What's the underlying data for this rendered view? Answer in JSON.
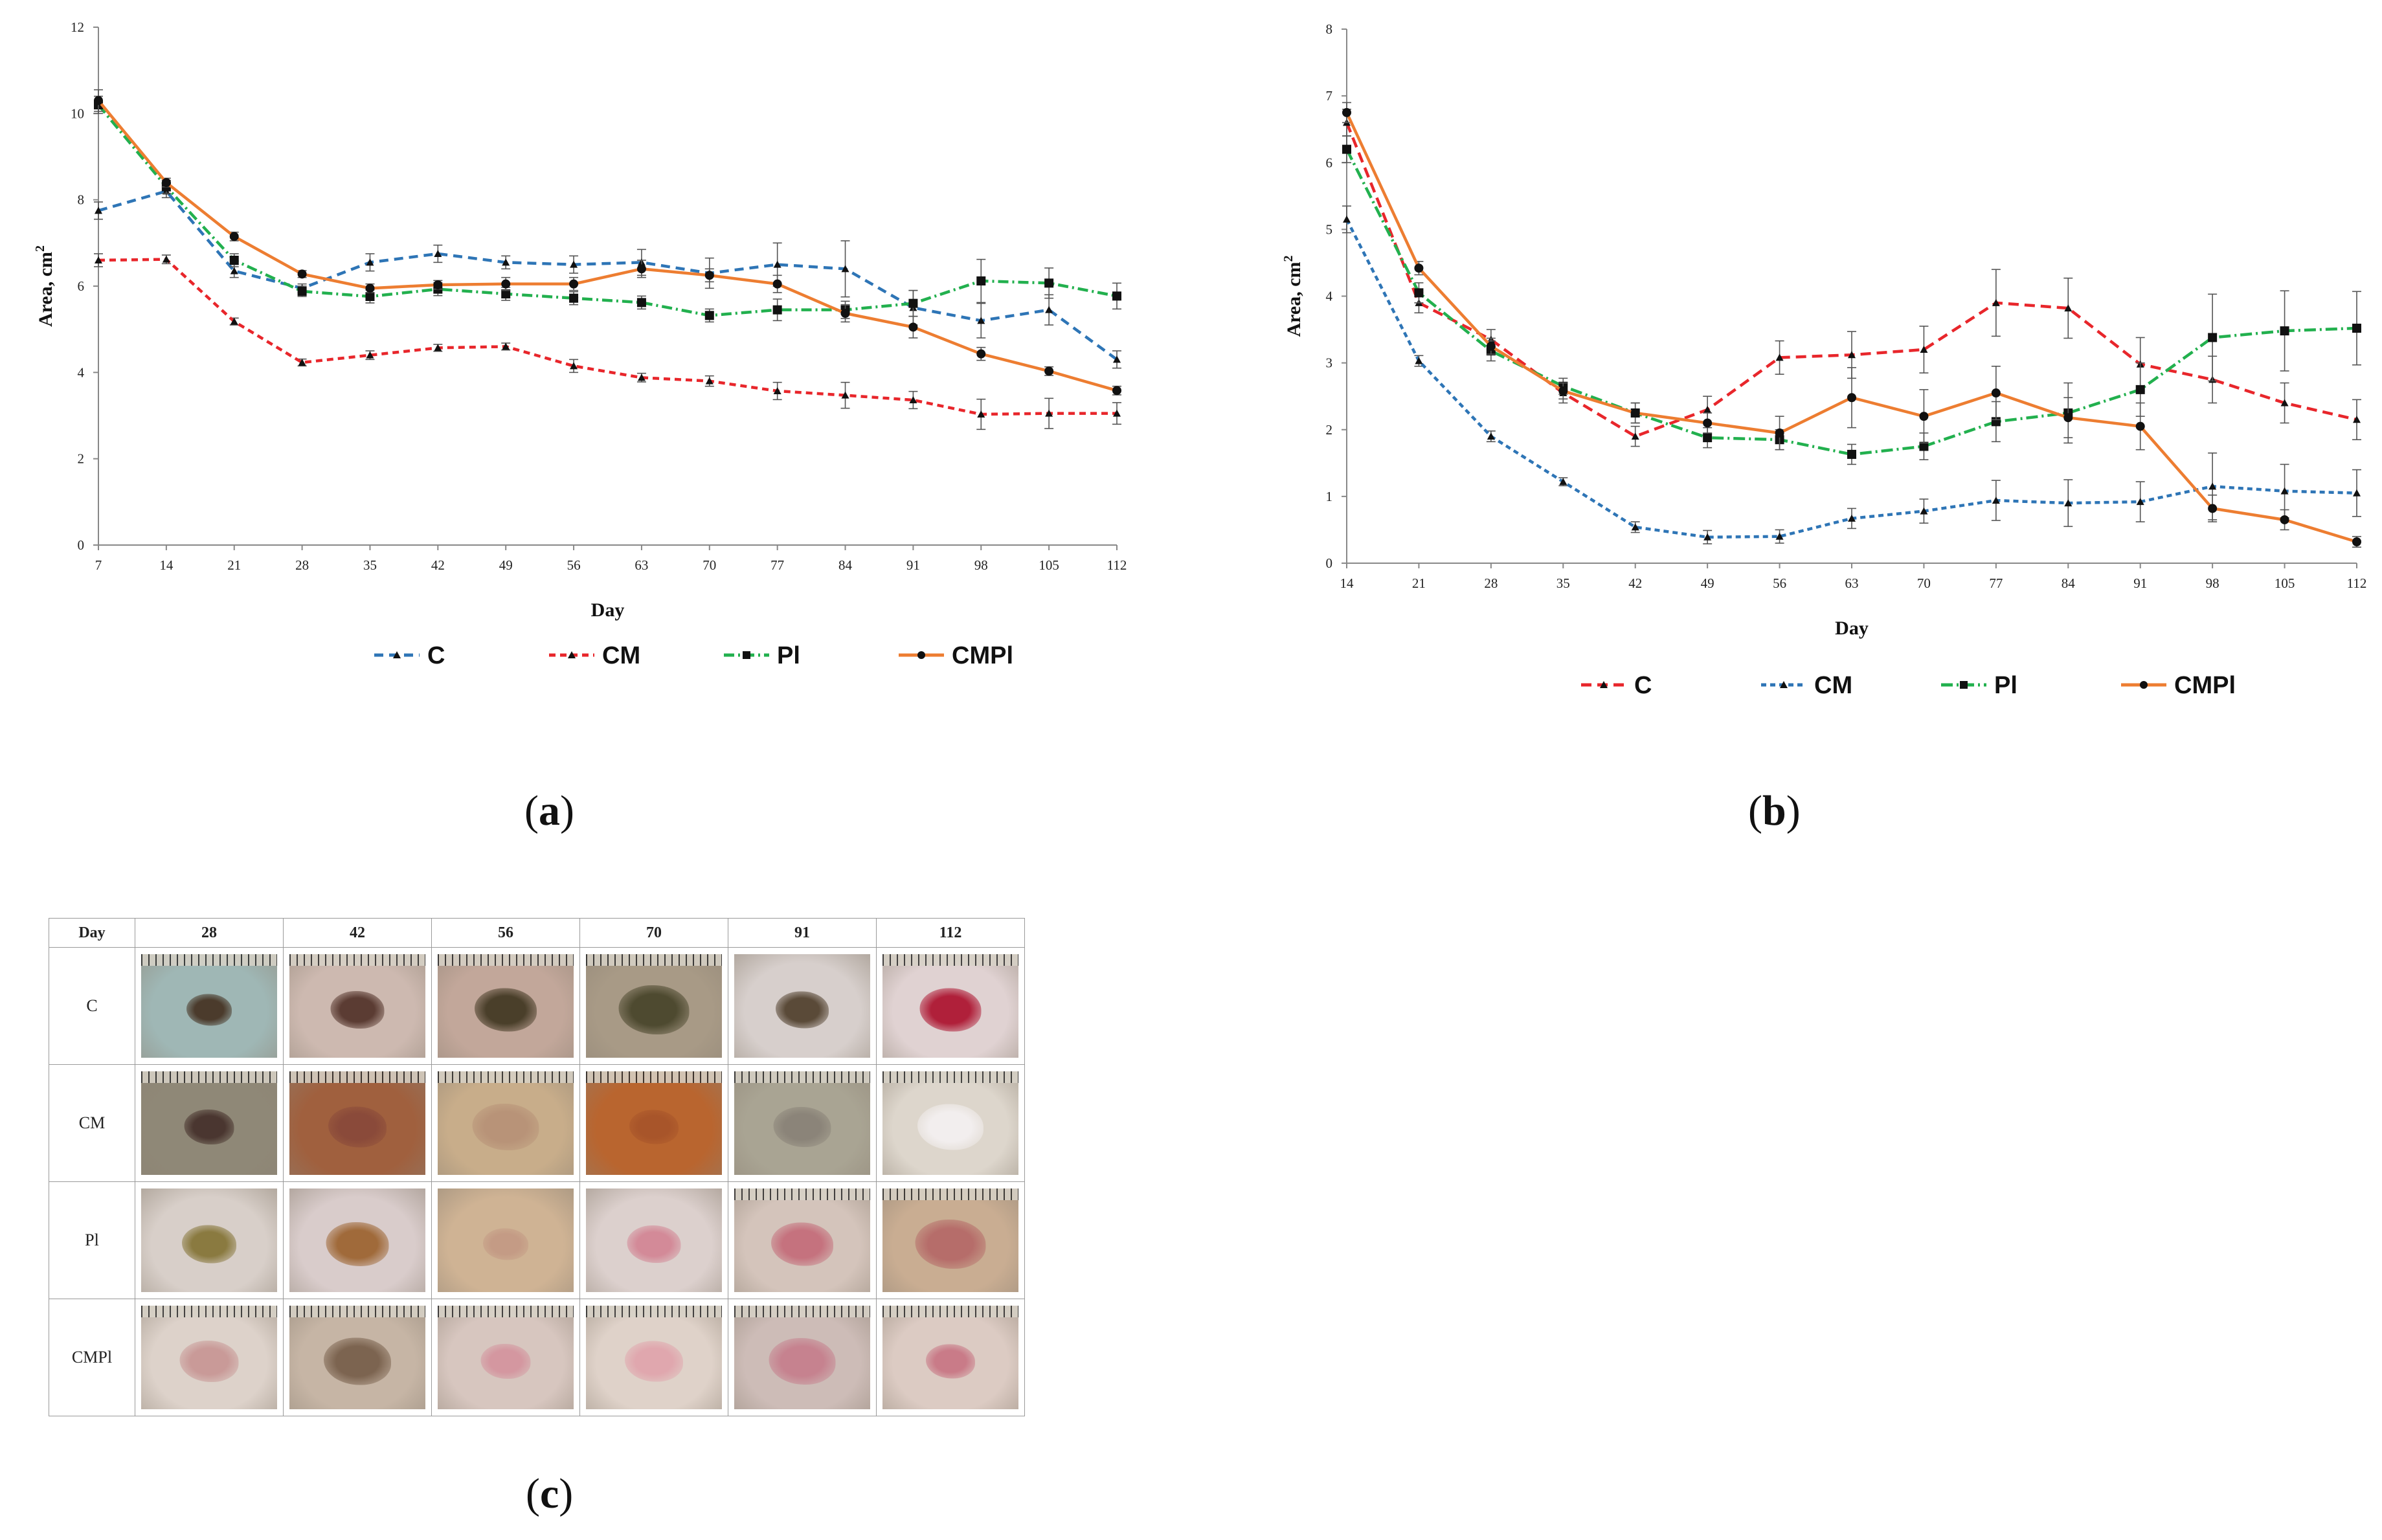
{
  "chart_data": [
    {
      "type": "line",
      "panel": "a",
      "xlabel": "Day",
      "ylabel": "Area, cm",
      "ylabel_sup": "2",
      "x": [
        7,
        14,
        21,
        28,
        35,
        42,
        49,
        56,
        63,
        70,
        77,
        84,
        91,
        98,
        105,
        112
      ],
      "ylim": [
        0,
        12
      ],
      "yticks": [
        0,
        2,
        4,
        6,
        8,
        10,
        12
      ],
      "grid": false,
      "legend": "bottom",
      "series": [
        {
          "name": "C",
          "color": "#2e75b6",
          "dash": "14 9",
          "marker": "tri",
          "values": [
            7.75,
            8.2,
            6.35,
            5.95,
            6.55,
            6.75,
            6.55,
            6.5,
            6.55,
            6.3,
            6.5,
            6.4,
            5.5,
            5.2,
            5.45,
            4.3
          ],
          "errors": [
            0.2,
            0.15,
            0.15,
            0.1,
            0.2,
            0.2,
            0.15,
            0.2,
            0.3,
            0.35,
            0.5,
            0.65,
            0.4,
            0.4,
            0.35,
            0.2
          ]
        },
        {
          "name": "CM",
          "color": "#e8262b",
          "dash": "10 7",
          "marker": "tri",
          "values": [
            6.6,
            6.62,
            5.18,
            4.23,
            4.4,
            4.57,
            4.6,
            4.15,
            3.88,
            3.8,
            3.57,
            3.47,
            3.36,
            3.03,
            3.05,
            3.05
          ],
          "errors": [
            0.15,
            0.1,
            0.08,
            0.08,
            0.1,
            0.08,
            0.08,
            0.15,
            0.1,
            0.12,
            0.2,
            0.3,
            0.2,
            0.35,
            0.35,
            0.25
          ]
        },
        {
          "name": "Pl",
          "color": "#22b04e",
          "dash": "16 6 3 6",
          "marker": "square",
          "values": [
            10.2,
            8.3,
            6.6,
            5.88,
            5.76,
            5.93,
            5.82,
            5.72,
            5.62,
            5.32,
            5.45,
            5.45,
            5.6,
            6.12,
            6.07,
            5.77
          ],
          "errors": [
            0.2,
            0.15,
            0.15,
            0.12,
            0.15,
            0.15,
            0.15,
            0.15,
            0.15,
            0.15,
            0.25,
            0.2,
            0.3,
            0.5,
            0.35,
            0.3
          ]
        },
        {
          "name": "CMPl",
          "color": "#ed7d31",
          "dash": "",
          "marker": "dot",
          "values": [
            10.3,
            8.4,
            7.15,
            6.28,
            5.95,
            6.03,
            6.05,
            6.05,
            6.4,
            6.25,
            6.05,
            5.37,
            5.05,
            4.43,
            4.03,
            3.58
          ],
          "errors": [
            0.25,
            0.1,
            0.1,
            0.08,
            0.1,
            0.1,
            0.15,
            0.15,
            0.2,
            0.15,
            0.2,
            0.2,
            0.25,
            0.15,
            0.1,
            0.1
          ]
        }
      ]
    },
    {
      "type": "line",
      "panel": "b",
      "xlabel": "Day",
      "ylabel": "Area, cm",
      "ylabel_sup": "2",
      "x": [
        14,
        21,
        28,
        35,
        42,
        49,
        56,
        63,
        70,
        77,
        84,
        91,
        98,
        105,
        112
      ],
      "ylim": [
        0,
        8
      ],
      "yticks": [
        0,
        1,
        2,
        3,
        4,
        5,
        6,
        7,
        8
      ],
      "grid": false,
      "legend": "bottom",
      "series": [
        {
          "name": "C",
          "color": "#e8262b",
          "dash": "16 9",
          "marker": "tri",
          "values": [
            6.6,
            3.9,
            3.35,
            2.55,
            1.9,
            2.3,
            3.08,
            3.12,
            3.2,
            3.9,
            3.82,
            2.98,
            2.75,
            2.4,
            2.15
          ],
          "errors": [
            0.2,
            0.15,
            0.15,
            0.15,
            0.15,
            0.2,
            0.25,
            0.35,
            0.35,
            0.5,
            0.45,
            0.4,
            0.35,
            0.3,
            0.3
          ]
        },
        {
          "name": "CM",
          "color": "#2e75b6",
          "dash": "8 6",
          "marker": "tri",
          "values": [
            5.15,
            3.03,
            1.9,
            1.22,
            0.54,
            0.39,
            0.4,
            0.67,
            0.78,
            0.94,
            0.9,
            0.92,
            1.15,
            1.08,
            1.05
          ],
          "errors": [
            0.2,
            0.08,
            0.08,
            0.06,
            0.08,
            0.1,
            0.1,
            0.15,
            0.18,
            0.3,
            0.35,
            0.3,
            0.5,
            0.4,
            0.35
          ]
        },
        {
          "name": "Pl",
          "color": "#22b04e",
          "dash": "18 6 3 6",
          "marker": "square",
          "values": [
            6.2,
            4.05,
            3.18,
            2.65,
            2.25,
            1.88,
            1.85,
            1.63,
            1.75,
            2.12,
            2.25,
            2.6,
            3.38,
            3.48,
            3.52
          ],
          "errors": [
            0.2,
            0.15,
            0.15,
            0.12,
            0.15,
            0.15,
            0.15,
            0.15,
            0.2,
            0.3,
            0.45,
            0.4,
            0.65,
            0.6,
            0.55
          ]
        },
        {
          "name": "CMPl",
          "color": "#ed7d31",
          "dash": "",
          "marker": "dot",
          "values": [
            6.75,
            4.42,
            3.25,
            2.58,
            2.25,
            2.1,
            1.95,
            2.48,
            2.2,
            2.55,
            2.18,
            2.05,
            0.82,
            0.65,
            0.32
          ],
          "errors": [
            0.15,
            0.1,
            0.12,
            0.12,
            0.15,
            0.15,
            0.25,
            0.45,
            0.4,
            0.4,
            0.3,
            0.35,
            0.2,
            0.15,
            0.08
          ]
        }
      ]
    }
  ],
  "panels": {
    "a": "a",
    "b": "b",
    "c": "c"
  },
  "photo_table": {
    "header_label": "Day",
    "days": [
      "28",
      "42",
      "56",
      "70",
      "91",
      "112"
    ],
    "groups": [
      "C",
      "CM",
      "Pl",
      "CMPl"
    ]
  }
}
